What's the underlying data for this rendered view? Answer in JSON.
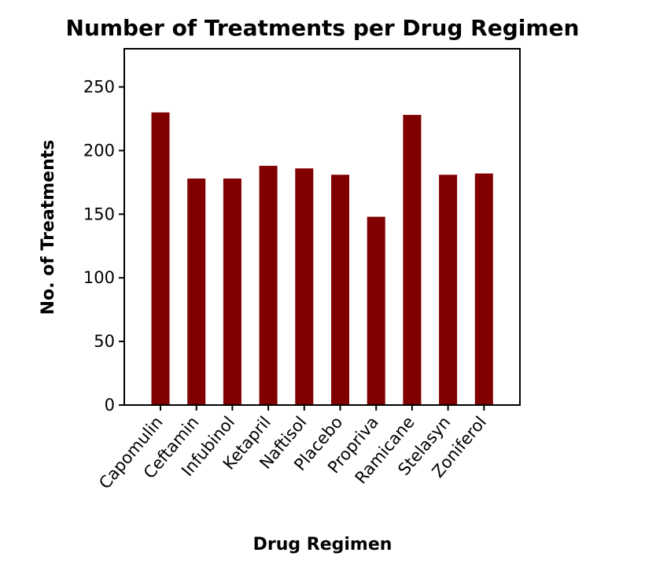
{
  "chart_data": {
    "type": "bar",
    "title": "Number of Treatments per Drug Regimen",
    "xlabel": "Drug Regimen",
    "ylabel": "No. of Treatments",
    "categories": [
      "Capomulin",
      "Ceftamin",
      "Infubinol",
      "Ketapril",
      "Naftisol",
      "Placebo",
      "Propriva",
      "Ramicane",
      "Stelasyn",
      "Zoniferol"
    ],
    "values": [
      230,
      178,
      178,
      188,
      186,
      181,
      148,
      228,
      181,
      182
    ],
    "yticks": [
      0,
      50,
      100,
      150,
      200,
      250
    ],
    "ylim": [
      0,
      280
    ],
    "bar_color": "#800000",
    "grid": false,
    "legend": "none"
  }
}
